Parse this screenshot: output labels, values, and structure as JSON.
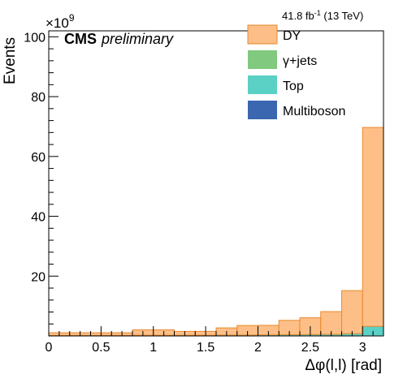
{
  "chart_data": {
    "type": "bar",
    "stacked": true,
    "histogram": true,
    "ylabel": "Events",
    "xlabel": "Δφ(l,l) [rad]",
    "y_multiplier": "×10",
    "y_multiplier_exp": "9",
    "lumi_label": {
      "value": "41.8 fb",
      "exp": "-1",
      "suffix": " (13 TeV)"
    },
    "cms_label": "CMS",
    "cms_sublabel": "preliminary",
    "xlim": [
      0,
      3.2
    ],
    "ylim": [
      0,
      102
    ],
    "x_ticks": [
      "0",
      "0.5",
      "1",
      "1.5",
      "2",
      "2.5",
      "3"
    ],
    "x_tick_values": [
      0,
      0.5,
      1,
      1.5,
      2,
      2.5,
      3
    ],
    "y_ticks": [
      "20",
      "40",
      "60",
      "80",
      "100"
    ],
    "y_tick_values": [
      20,
      40,
      60,
      80,
      100
    ],
    "bin_edges": [
      0,
      0.2,
      0.4,
      0.6,
      0.8,
      1.0,
      1.2,
      1.4,
      1.6,
      1.8,
      2.0,
      2.2,
      2.4,
      2.6,
      2.8,
      3.0,
      3.2
    ],
    "series": [
      {
        "name": "Multiboson",
        "color": "#3a67b0",
        "values": [
          0.02,
          0.02,
          0.02,
          0.02,
          0.03,
          0.03,
          0.03,
          0.03,
          0.04,
          0.05,
          0.05,
          0.06,
          0.07,
          0.08,
          0.1,
          0.15
        ]
      },
      {
        "name": "Top",
        "color": "#5bd0c4",
        "values": [
          0.1,
          0.1,
          0.1,
          0.1,
          0.15,
          0.15,
          0.15,
          0.15,
          0.2,
          0.2,
          0.25,
          0.3,
          0.35,
          0.4,
          0.6,
          3.0
        ]
      },
      {
        "name": "γ+jets",
        "color": "#80c97e",
        "values": [
          0.05,
          0.05,
          0.05,
          0.05,
          0.05,
          0.05,
          0.05,
          0.05,
          0.05,
          0.05,
          0.05,
          0.05,
          0.05,
          0.05,
          0.05,
          0.05
        ]
      },
      {
        "name": "DY",
        "color": "#fdbf87",
        "edge": "#e8892b",
        "values": [
          0.9,
          0.9,
          0.9,
          0.9,
          1.8,
          1.8,
          1.3,
          1.3,
          2.4,
          3.2,
          3.2,
          4.8,
          5.6,
          7.6,
          14.4,
          66.5
        ]
      }
    ],
    "legend_order": [
      "DY",
      "γ+jets",
      "Top",
      "Multiboson"
    ],
    "legend_placement": "top-right",
    "grid": false
  }
}
